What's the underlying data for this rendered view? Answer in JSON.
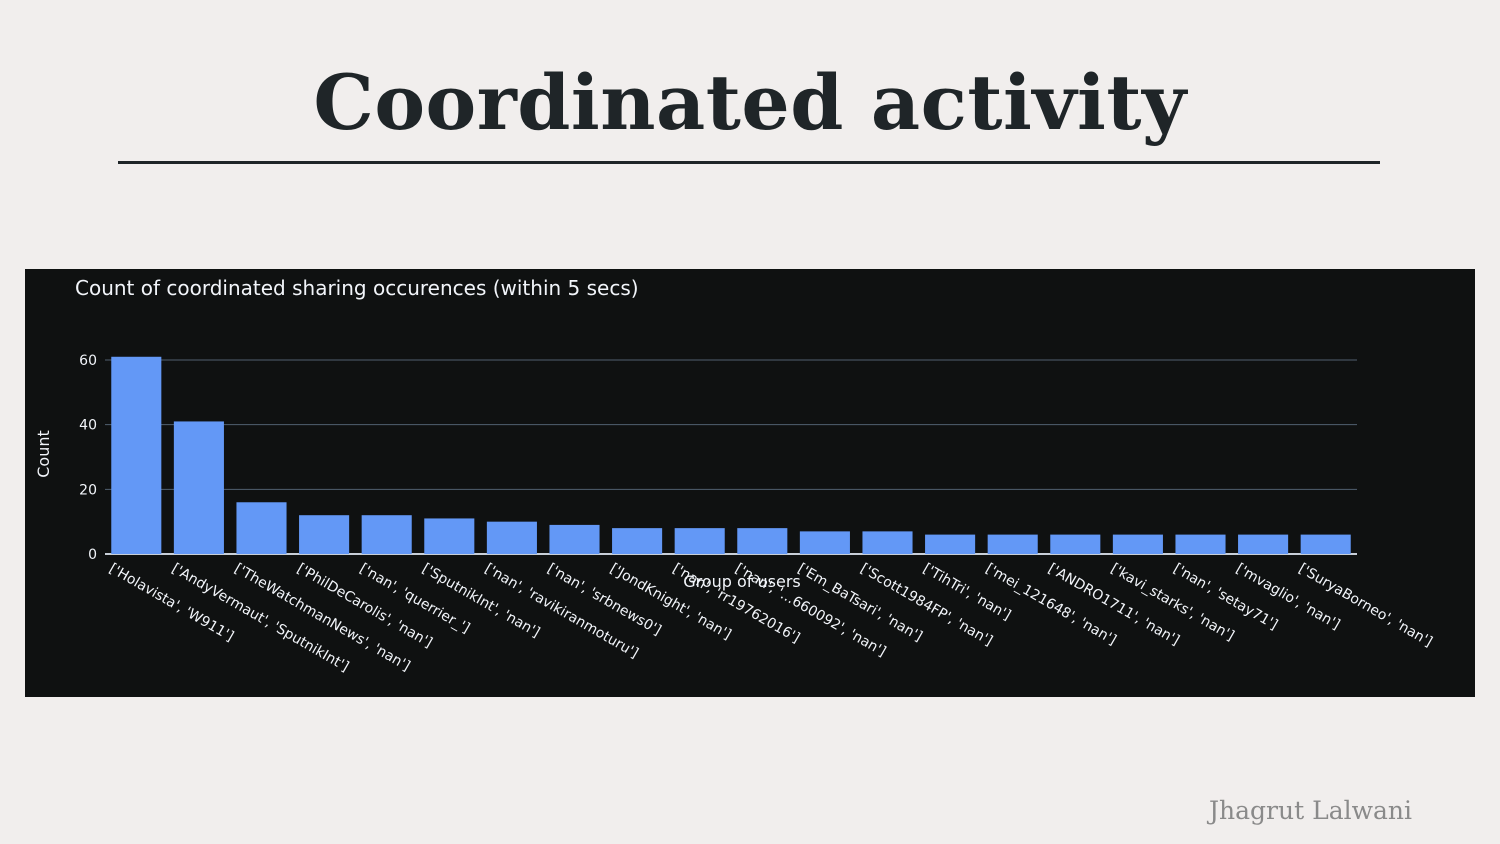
{
  "slide": {
    "title": "Coordinated activity",
    "author": "Jhagrut Lalwani"
  },
  "colors": {
    "background": "#f1eeed",
    "panel": "#0f1111",
    "bar": "#6398f6",
    "grid": "#506070",
    "text": "#f2f5fa"
  },
  "chart_data": {
    "type": "bar",
    "title": "Count of coordinated sharing occurences (within 5 secs)",
    "xlabel": "Group of users",
    "ylabel": "Count",
    "ylim": [
      0,
      62
    ],
    "yticks": [
      0,
      20,
      40,
      60
    ],
    "grid": true,
    "categories": [
      "['Holavista', 'W911']",
      "['AndyVermaut', 'SputnikInt']",
      "['TheWatchmanNews', 'nan']",
      "['PhilDeCarolis', 'nan']",
      "['nan', 'querrier_']",
      "['SputnikInt', 'nan']",
      "['nan', 'ravikiranmoturu']",
      "['nan', 'srbnews0']",
      "['JondKnight', 'nan']",
      "['nan', 'rr19762016']",
      "['nan', '...660092', 'nan']",
      "['Em_BaTsari', 'nan']",
      "['Scott1984FP', 'nan']",
      "['TihTri', 'nan']",
      "['mei_121648', 'nan']",
      "['ANDRO1711', 'nan']",
      "['kavi_starks', 'nan']",
      "['nan', 'setay71']",
      "['mvaglio', 'nan']",
      "['SuryaBorneo', 'nan']"
    ],
    "values": [
      61,
      41,
      16,
      12,
      12,
      11,
      10,
      9,
      8,
      8,
      8,
      7,
      7,
      6,
      6,
      6,
      6,
      6,
      6,
      6
    ]
  }
}
